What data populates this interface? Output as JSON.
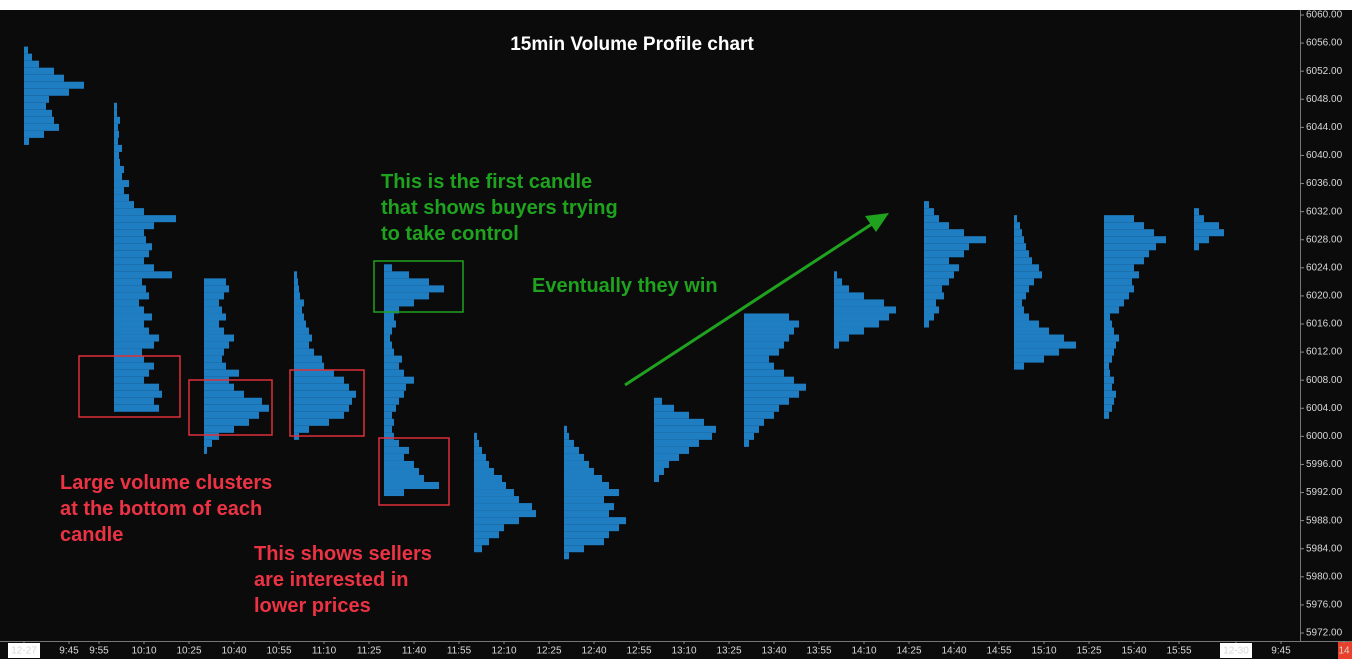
{
  "chart_data": {
    "type": "volume_profile",
    "title": "15min Volume Profile chart",
    "color": "#1f7dc2",
    "xlim": [
      -8,
      440
    ],
    "xticks": [
      {
        "value": 0,
        "label": "12-27"
      },
      {
        "value": 15,
        "label": "9:45"
      },
      {
        "value": 25,
        "label": "9:55"
      },
      {
        "value": 40,
        "label": "10:10"
      },
      {
        "value": 55,
        "label": "10:25"
      },
      {
        "value": 70,
        "label": "10:40"
      },
      {
        "value": 85,
        "label": "10:55"
      },
      {
        "value": 100,
        "label": "11:10"
      },
      {
        "value": 115,
        "label": "11:25"
      },
      {
        "value": 130,
        "label": "11:40"
      },
      {
        "value": 145,
        "label": "11:55"
      },
      {
        "value": 160,
        "label": "12:10"
      },
      {
        "value": 175,
        "label": "12:25"
      },
      {
        "value": 190,
        "label": "12:40"
      },
      {
        "value": 205,
        "label": "12:55"
      },
      {
        "value": 220,
        "label": "13:10"
      },
      {
        "value": 235,
        "label": "13:25"
      },
      {
        "value": 250,
        "label": "13:40"
      },
      {
        "value": 265,
        "label": "13:55"
      },
      {
        "value": 280,
        "label": "14:10"
      },
      {
        "value": 295,
        "label": "14:25"
      },
      {
        "value": 310,
        "label": "14:40"
      },
      {
        "value": 325,
        "label": "14:55"
      },
      {
        "value": 340,
        "label": "15:10"
      },
      {
        "value": 355,
        "label": "15:25"
      },
      {
        "value": 370,
        "label": "15:40"
      },
      {
        "value": 385,
        "label": "15:55"
      },
      {
        "value": 404,
        "label": "12-30"
      },
      {
        "value": 419,
        "label": "9:45"
      },
      {
        "value": 440,
        "label": "14"
      }
    ],
    "ylim": [
      5972,
      6060
    ],
    "yticks": [
      {
        "value": 6060,
        "label": "6060.00"
      },
      {
        "value": 6056,
        "label": "6056.00"
      },
      {
        "value": 6052,
        "label": "6052.00"
      },
      {
        "value": 6048,
        "label": "6048.00"
      },
      {
        "value": 6044,
        "label": "6044.00"
      },
      {
        "value": 6040,
        "label": "6040.00"
      },
      {
        "value": 6036,
        "label": "6036.00"
      },
      {
        "value": 6032,
        "label": "6032.00"
      },
      {
        "value": 6028,
        "label": "6028.00"
      },
      {
        "value": 6024,
        "label": "6024.00"
      },
      {
        "value": 6020,
        "label": "6020.00"
      },
      {
        "value": 6016,
        "label": "6016.00"
      },
      {
        "value": 6012,
        "label": "6012.00"
      },
      {
        "value": 6008,
        "label": "6008.00"
      },
      {
        "value": 6004,
        "label": "6004.00"
      },
      {
        "value": 6000,
        "label": "6000.00"
      },
      {
        "value": 5996,
        "label": "5996.00"
      },
      {
        "value": 5992,
        "label": "5992.00"
      },
      {
        "value": 5988,
        "label": "5988.00"
      },
      {
        "value": 5984,
        "label": "5984.00"
      },
      {
        "value": 5980,
        "label": "5980.00"
      },
      {
        "value": 5976,
        "label": "5976.00"
      },
      {
        "value": 5972,
        "label": "5972.00"
      }
    ],
    "profiles": [
      {
        "x": 0,
        "low": 6042,
        "volumes": [
          5,
          20,
          35,
          30,
          28,
          22,
          25,
          45,
          60,
          40,
          30,
          15,
          8,
          4
        ]
      },
      {
        "x": 30,
        "low": 6004,
        "volumes": [
          45,
          40,
          48,
          45,
          30,
          35,
          40,
          30,
          28,
          40,
          45,
          35,
          30,
          38,
          30,
          25,
          35,
          32,
          28,
          58,
          40,
          30,
          35,
          38,
          32,
          30,
          40,
          62,
          30,
          20,
          15,
          10,
          15,
          8,
          10,
          6,
          5,
          8,
          4,
          5,
          4,
          6,
          3,
          3
        ]
      },
      {
        "x": 60,
        "low": 5998,
        "volumes": [
          3,
          8,
          15,
          30,
          45,
          55,
          65,
          58,
          40,
          30,
          25,
          35,
          22,
          18,
          20,
          25,
          30,
          20,
          15,
          22,
          18,
          15,
          20,
          25,
          22
        ]
      },
      {
        "x": 90,
        "low": 6000,
        "volumes": [
          5,
          15,
          35,
          50,
          55,
          58,
          62,
          55,
          50,
          40,
          30,
          28,
          20,
          15,
          18,
          15,
          12,
          10,
          8,
          10,
          6,
          5,
          4,
          3
        ]
      },
      {
        "x": 120,
        "low": 5992,
        "volumes": [
          20,
          55,
          40,
          35,
          30,
          20,
          25,
          15,
          10,
          8,
          10,
          8,
          12,
          15,
          20,
          22,
          30,
          20,
          15,
          18,
          10,
          8,
          6,
          8,
          12,
          10,
          15,
          30,
          45,
          60,
          45,
          25,
          8
        ]
      },
      {
        "x": 150,
        "low": 5984,
        "volumes": [
          8,
          15,
          25,
          30,
          45,
          62,
          58,
          45,
          40,
          32,
          28,
          20,
          15,
          12,
          8,
          5,
          3
        ]
      },
      {
        "x": 180,
        "low": 5983,
        "volumes": [
          5,
          20,
          40,
          45,
          55,
          62,
          45,
          50,
          40,
          55,
          45,
          38,
          30,
          25,
          20,
          15,
          10,
          5,
          3
        ]
      },
      {
        "x": 210,
        "low": 5994,
        "volumes": [
          5,
          10,
          15,
          25,
          35,
          45,
          58,
          62,
          50,
          35,
          20,
          8
        ]
      },
      {
        "x": 240,
        "low": 5999,
        "volumes": [
          5,
          10,
          15,
          20,
          30,
          35,
          45,
          55,
          62,
          50,
          40,
          30,
          25,
          35,
          40,
          45,
          50,
          55,
          45
        ]
      },
      {
        "x": 270,
        "low": 6013,
        "volumes": [
          5,
          15,
          30,
          45,
          55,
          62,
          50,
          30,
          15,
          8,
          3
        ]
      },
      {
        "x": 300,
        "low": 6016,
        "volumes": [
          5,
          10,
          15,
          12,
          20,
          18,
          25,
          30,
          35,
          25,
          40,
          45,
          62,
          40,
          25,
          15,
          10,
          5
        ]
      },
      {
        "x": 330,
        "low": 6010,
        "volumes": [
          10,
          30,
          45,
          62,
          50,
          35,
          25,
          15,
          10,
          8,
          12,
          15,
          20,
          28,
          25,
          18,
          15,
          12,
          10,
          8,
          6,
          3
        ]
      },
      {
        "x": 360,
        "low": 6003,
        "volumes": [
          5,
          8,
          10,
          12,
          8,
          10,
          6,
          5,
          8,
          10,
          12,
          15,
          10,
          8,
          6,
          15,
          20,
          25,
          30,
          28,
          35,
          30,
          40,
          45,
          52,
          62,
          50,
          40,
          30
        ]
      },
      {
        "x": 390,
        "low": 6027,
        "volumes": [
          5,
          15,
          30,
          25,
          10,
          5
        ]
      }
    ],
    "annotations": [
      {
        "lines": [
          "This is the first candle",
          "that shows buyers trying",
          "to take control"
        ],
        "color": "#1fa31f"
      },
      {
        "lines": [
          "Eventually they win"
        ],
        "color": "#1fa31f"
      },
      {
        "lines": [
          "Large volume clusters",
          "at the bottom of each",
          "candle"
        ],
        "color": "#ec3344"
      },
      {
        "lines": [
          "This shows sellers",
          "are interested in",
          "lower prices"
        ],
        "color": "#ec3344"
      }
    ]
  }
}
